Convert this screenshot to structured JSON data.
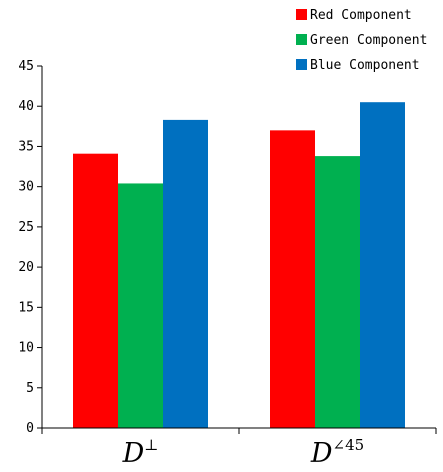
{
  "chart_data": {
    "type": "bar",
    "categories": [
      {
        "base": "D",
        "superscript": "⊥"
      },
      {
        "base": "D",
        "superscript": "∠45"
      }
    ],
    "series": [
      {
        "name": "Red Component",
        "color": "#ff0000",
        "values": [
          34.1,
          37.0
        ]
      },
      {
        "name": "Green Component",
        "color": "#00b050",
        "values": [
          30.4,
          33.8
        ]
      },
      {
        "name": "Blue Component",
        "color": "#0070c0",
        "values": [
          38.3,
          40.5
        ]
      }
    ],
    "y_ticks": [
      "0",
      "5",
      "10",
      "15",
      "20",
      "25",
      "30",
      "35",
      "40",
      "45"
    ],
    "ylim": [
      0,
      45
    ],
    "grid": false,
    "legend_position": "top-right"
  }
}
